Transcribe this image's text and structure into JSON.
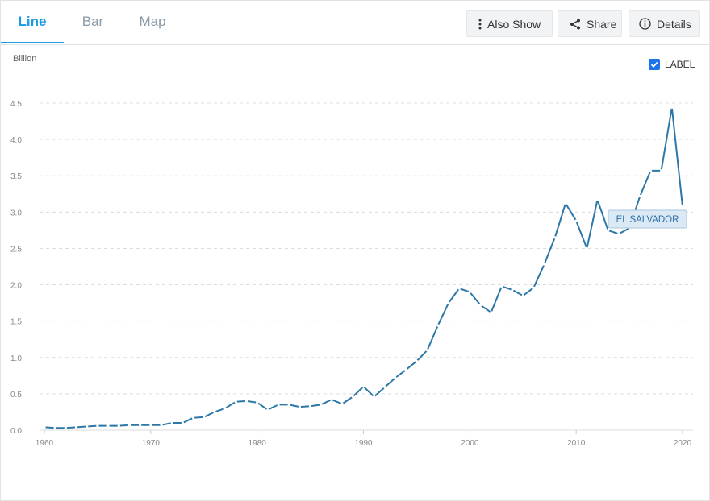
{
  "tabs": [
    {
      "label": "Line",
      "active": true
    },
    {
      "label": "Bar",
      "active": false
    },
    {
      "label": "Map",
      "active": false
    }
  ],
  "toolbar": {
    "also_show_label": "Also Show",
    "share_label": "Share",
    "details_label": "Details"
  },
  "icons": {
    "also_show": "vertical-dots-icon",
    "share": "share-icon",
    "details": "info-icon"
  },
  "colors": {
    "accent": "#1a9be3",
    "line": "#2c77a8",
    "checkbox": "#1a73e8",
    "series_label_bg": "#dbe9f5",
    "series_label_border": "#a9c6e0"
  },
  "label_toggle": {
    "label": "LABEL",
    "checked": true
  },
  "chart_data": {
    "type": "line",
    "unit_label": "Billion",
    "xlim": [
      1960,
      2020
    ],
    "ylim": [
      0,
      4.5
    ],
    "x_ticks": [
      1960,
      1970,
      1980,
      1990,
      2000,
      2010,
      2020
    ],
    "y_ticks": [
      "0.0",
      "0.5",
      "1.0",
      "1.5",
      "2.0",
      "2.5",
      "3.0",
      "3.5",
      "4.0",
      "4.5"
    ],
    "grid": true,
    "series": [
      {
        "name": "EL SALVADOR",
        "x": [
          1960,
          1961,
          1962,
          1963,
          1964,
          1965,
          1966,
          1967,
          1968,
          1969,
          1970,
          1971,
          1972,
          1973,
          1974,
          1975,
          1976,
          1977,
          1978,
          1979,
          1980,
          1981,
          1982,
          1983,
          1984,
          1985,
          1986,
          1987,
          1988,
          1989,
          1990,
          1991,
          1992,
          1993,
          1994,
          1995,
          1996,
          1997,
          1998,
          1999,
          2000,
          2001,
          2002,
          2003,
          2004,
          2005,
          2006,
          2007,
          2008,
          2009,
          2010,
          2011,
          2012,
          2013,
          2014,
          2015,
          2016,
          2017,
          2018,
          2019,
          2020
        ],
        "values": [
          0.04,
          0.03,
          0.03,
          0.04,
          0.05,
          0.06,
          0.06,
          0.06,
          0.07,
          0.07,
          0.07,
          0.07,
          0.1,
          0.1,
          0.17,
          0.18,
          0.25,
          0.3,
          0.39,
          0.4,
          0.38,
          0.28,
          0.35,
          0.35,
          0.32,
          0.33,
          0.35,
          0.42,
          0.36,
          0.46,
          0.6,
          0.46,
          0.59,
          0.72,
          0.83,
          0.95,
          1.1,
          1.44,
          1.75,
          1.95,
          1.9,
          1.72,
          1.62,
          1.98,
          1.93,
          1.85,
          1.96,
          2.28,
          2.65,
          3.12,
          2.88,
          2.5,
          3.17,
          2.75,
          2.7,
          2.78,
          3.22,
          3.57,
          3.57,
          4.44,
          3.08
        ]
      }
    ]
  }
}
